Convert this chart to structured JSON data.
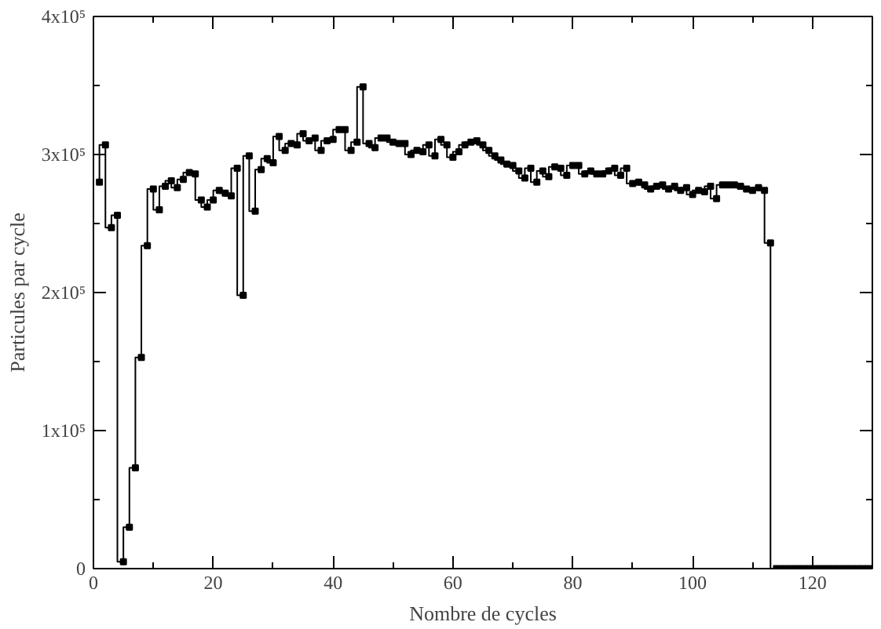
{
  "chart_data": {
    "type": "step",
    "xlabel": "Nombre de cycles",
    "ylabel": "Particules par cycle",
    "x": [
      1,
      2,
      3,
      4,
      5,
      6,
      7,
      8,
      9,
      10,
      11,
      12,
      13,
      14,
      15,
      16,
      17,
      18,
      19,
      20,
      21,
      22,
      23,
      24,
      25,
      26,
      27,
      28,
      29,
      30,
      31,
      32,
      33,
      34,
      35,
      36,
      37,
      38,
      39,
      40,
      41,
      42,
      43,
      44,
      45,
      46,
      47,
      48,
      49,
      50,
      51,
      52,
      53,
      54,
      55,
      56,
      57,
      58,
      59,
      60,
      61,
      62,
      63,
      64,
      65,
      66,
      67,
      68,
      69,
      70,
      71,
      72,
      73,
      74,
      75,
      76,
      77,
      78,
      79,
      80,
      81,
      82,
      83,
      84,
      85,
      86,
      87,
      88,
      89,
      90,
      91,
      92,
      93,
      94,
      95,
      96,
      97,
      98,
      99,
      100,
      101,
      102,
      103,
      104,
      105,
      106,
      107,
      108,
      109,
      110,
      111,
      112,
      113,
      114,
      115,
      116,
      117,
      118,
      119,
      120,
      121,
      122,
      123,
      124,
      125,
      126,
      127,
      128,
      129,
      130
    ],
    "series": [
      {
        "color": "#000000",
        "values": [
          280000,
          307000,
          247000,
          256000,
          5000,
          30000,
          73000,
          153000,
          234000,
          275000,
          260000,
          277000,
          281000,
          276000,
          282000,
          287000,
          286000,
          267000,
          262000,
          267000,
          274000,
          272000,
          270000,
          290000,
          198000,
          299000,
          259000,
          289000,
          297000,
          294000,
          313000,
          303000,
          308000,
          307000,
          315000,
          310000,
          312000,
          303000,
          310000,
          311000,
          318000,
          318000,
          303000,
          309000,
          349000,
          308000,
          305000,
          312000,
          312000,
          309000,
          308000,
          308000,
          300000,
          303000,
          302000,
          307000,
          299000,
          311000,
          307000,
          298000,
          302000,
          307000,
          309000,
          310000,
          307000,
          303000,
          299000,
          296000,
          293000,
          292000,
          288000,
          283000,
          290000,
          280000,
          288000,
          284000,
          291000,
          290000,
          285000,
          292000,
          292000,
          286000,
          288000,
          286000,
          286000,
          288000,
          290000,
          285000,
          290000,
          279000,
          280000,
          278000,
          275000,
          277000,
          278000,
          275000,
          277000,
          274000,
          276000,
          271000,
          274000,
          273000,
          277000,
          268000,
          278000,
          278000,
          278000,
          277000,
          275000,
          274000,
          276000,
          274000,
          236000,
          0,
          0,
          0,
          0,
          0,
          0,
          0,
          0,
          0,
          0,
          0,
          0,
          0,
          0,
          0,
          0,
          0
        ]
      }
    ],
    "xlim": [
      0,
      130
    ],
    "ylim": [
      0,
      400000
    ],
    "xticks": [
      0,
      20,
      40,
      60,
      80,
      100,
      120
    ],
    "yticks": [
      {
        "value": 0,
        "label": "0"
      },
      {
        "value": 100000,
        "label": "1x10⁵"
      },
      {
        "value": 200000,
        "label": "2x10⁵"
      },
      {
        "value": 300000,
        "label": "3x10⁵"
      },
      {
        "value": 400000,
        "label": "4x10⁵"
      }
    ],
    "marker": "square",
    "grid": false
  }
}
